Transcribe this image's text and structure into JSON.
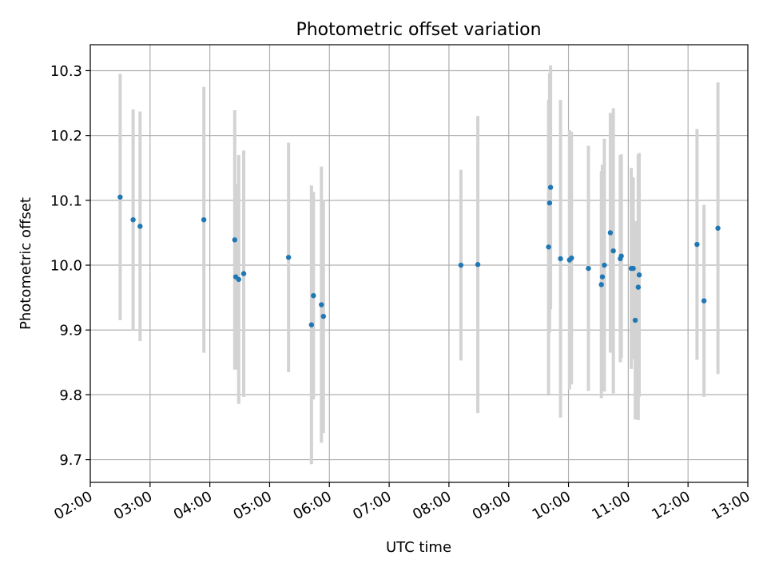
{
  "chart_data": {
    "type": "scatter",
    "title": "Photometric offset variation",
    "xlabel": "UTC time",
    "ylabel": "Photometric offset",
    "xlim": [
      "02:00",
      "13:00"
    ],
    "ylim": [
      9.665,
      10.34
    ],
    "grid": true,
    "x_ticks": [
      "02:00",
      "03:00",
      "04:00",
      "05:00",
      "06:00",
      "07:00",
      "08:00",
      "09:00",
      "10:00",
      "11:00",
      "12:00",
      "13:00"
    ],
    "y_ticks": [
      "9.7",
      "9.8",
      "9.9",
      "10.0",
      "10.1",
      "10.2",
      "10.3"
    ],
    "colors": {
      "point": "#1f77b4",
      "errorbar": "#d3d3d3",
      "grid": "#b0b0b0"
    },
    "series": [
      {
        "points": [
          {
            "x": "02:30",
            "y": 10.105,
            "err": 0.19
          },
          {
            "x": "02:43",
            "y": 10.07,
            "err": 0.17
          },
          {
            "x": "02:50",
            "y": 10.06,
            "err": 0.177
          },
          {
            "x": "03:54",
            "y": 10.07,
            "err": 0.205
          },
          {
            "x": "04:25",
            "y": 10.039,
            "err": 0.2
          },
          {
            "x": "04:26",
            "y": 9.982,
            "err": 0.143
          },
          {
            "x": "04:29",
            "y": 9.978,
            "err": 0.192
          },
          {
            "x": "04:34",
            "y": 9.987,
            "err": 0.19
          },
          {
            "x": "05:19",
            "y": 10.012,
            "err": 0.177
          },
          {
            "x": "05:42",
            "y": 9.908,
            "err": 0.215
          },
          {
            "x": "05:44",
            "y": 9.953,
            "err": 0.16
          },
          {
            "x": "05:52",
            "y": 9.939,
            "err": 0.213
          },
          {
            "x": "05:54",
            "y": 9.921,
            "err": 0.18
          },
          {
            "x": "08:12",
            "y": 10.0,
            "err": 0.147
          },
          {
            "x": "08:29",
            "y": 10.001,
            "err": 0.229
          },
          {
            "x": "09:40",
            "y": 10.028,
            "err": 0.227
          },
          {
            "x": "09:41",
            "y": 10.096,
            "err": 0.2
          },
          {
            "x": "09:42",
            "y": 10.12,
            "err": 0.188
          },
          {
            "x": "09:52",
            "y": 10.01,
            "err": 0.245
          },
          {
            "x": "10:01",
            "y": 10.008,
            "err": 0.2
          },
          {
            "x": "10:03",
            "y": 10.011,
            "err": 0.195
          },
          {
            "x": "10:20",
            "y": 9.995,
            "err": 0.189
          },
          {
            "x": "10:33",
            "y": 9.97,
            "err": 0.175
          },
          {
            "x": "10:34",
            "y": 9.982,
            "err": 0.173
          },
          {
            "x": "10:36",
            "y": 10.0,
            "err": 0.195
          },
          {
            "x": "10:42",
            "y": 10.05,
            "err": 0.185
          },
          {
            "x": "10:45",
            "y": 10.022,
            "err": 0.22
          },
          {
            "x": "10:52",
            "y": 10.01,
            "err": 0.16
          },
          {
            "x": "10:53",
            "y": 10.014,
            "err": 0.157
          },
          {
            "x": "11:03",
            "y": 9.995,
            "err": 0.155
          },
          {
            "x": "11:05",
            "y": 9.995,
            "err": 0.14
          },
          {
            "x": "11:07",
            "y": 9.915,
            "err": 0.153
          },
          {
            "x": "11:10",
            "y": 9.966,
            "err": 0.205
          },
          {
            "x": "11:11",
            "y": 9.985,
            "err": 0.188
          },
          {
            "x": "12:09",
            "y": 10.032,
            "err": 0.178
          },
          {
            "x": "12:16",
            "y": 9.945,
            "err": 0.148
          },
          {
            "x": "12:30",
            "y": 10.057,
            "err": 0.225
          }
        ]
      }
    ]
  }
}
